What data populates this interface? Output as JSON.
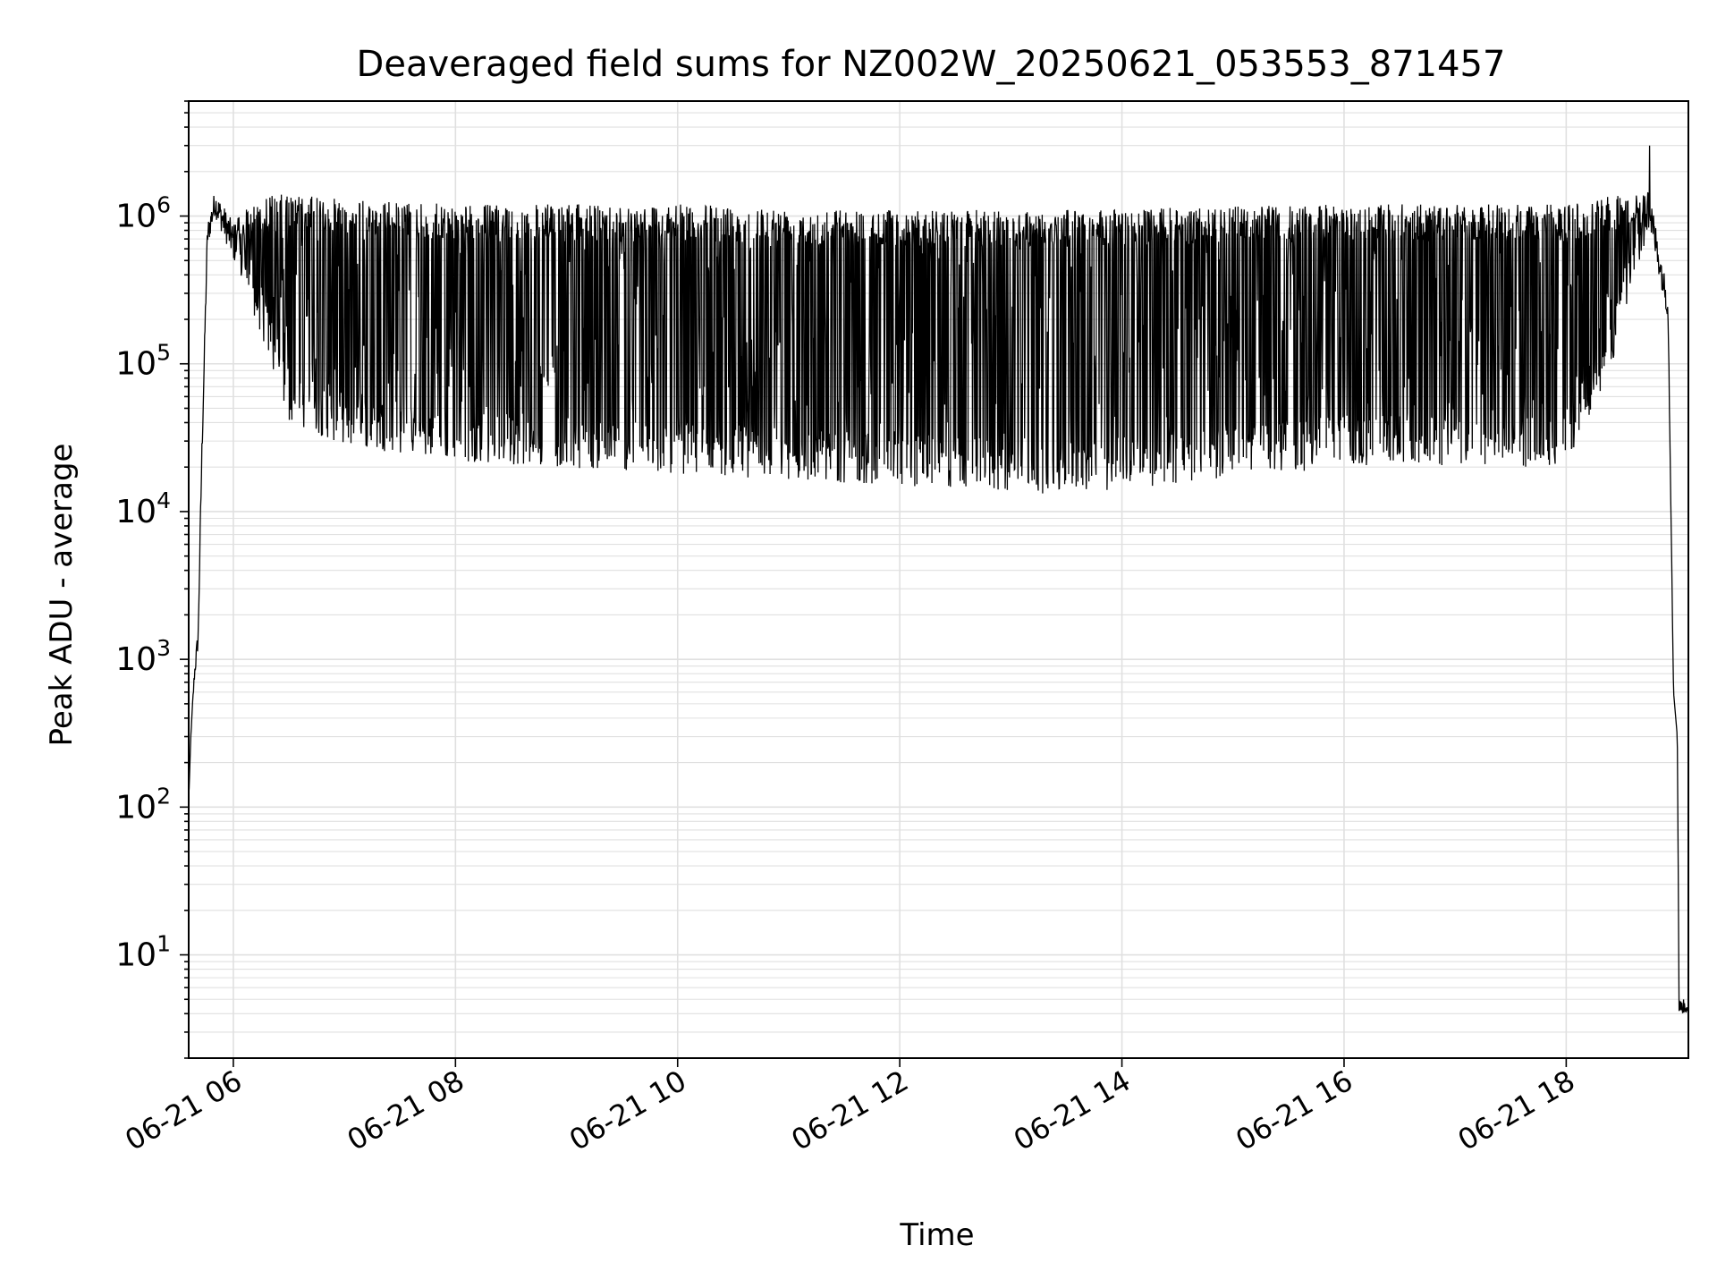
{
  "chart_data": {
    "type": "line",
    "title": "Deaveraged field sums for NZ002W_20250621_053553_871457",
    "xlabel": "Time",
    "ylabel": "Peak ADU - average",
    "yscale": "log",
    "ylim": [
      2,
      6000000
    ],
    "xlim": [
      "2025-06-21T05:35:53",
      "2025-06-21T19:06:00"
    ],
    "grid": true,
    "line_color": "#000000",
    "grid_color": "#e0e0e0",
    "x_ticks": [
      {
        "t": "2025-06-21T06:00:00",
        "label": "06-21 06"
      },
      {
        "t": "2025-06-21T08:00:00",
        "label": "06-21 08"
      },
      {
        "t": "2025-06-21T10:00:00",
        "label": "06-21 10"
      },
      {
        "t": "2025-06-21T12:00:00",
        "label": "06-21 12"
      },
      {
        "t": "2025-06-21T14:00:00",
        "label": "06-21 14"
      },
      {
        "t": "2025-06-21T16:00:00",
        "label": "06-21 16"
      },
      {
        "t": "2025-06-21T18:00:00",
        "label": "06-21 18"
      }
    ],
    "y_ticks": [
      {
        "v": 10,
        "base": "10",
        "exp": "1"
      },
      {
        "v": 100,
        "base": "10",
        "exp": "2"
      },
      {
        "v": 1000,
        "base": "10",
        "exp": "3"
      },
      {
        "v": 10000,
        "base": "10",
        "exp": "4"
      },
      {
        "v": 100000,
        "base": "10",
        "exp": "5"
      },
      {
        "v": 1000000,
        "base": "10",
        "exp": "6"
      }
    ],
    "series": [
      {
        "x_range": [
          "2025-06-21T05:35:53",
          "2025-06-21T19:06:00"
        ],
        "envelope_points": [
          {
            "t": "2025-06-21T05:36:00",
            "floor": 120,
            "peak": 120
          },
          {
            "t": "2025-06-21T05:37:00",
            "floor": 300,
            "peak": 300
          },
          {
            "t": "2025-06-21T05:39:00",
            "floor": 700,
            "peak": 900
          },
          {
            "t": "2025-06-21T05:41:00",
            "floor": 1200,
            "peak": 1700
          },
          {
            "t": "2025-06-21T05:43:00",
            "floor": 20000,
            "peak": 30000
          },
          {
            "t": "2025-06-21T05:46:00",
            "floor": 600000,
            "peak": 900000
          },
          {
            "t": "2025-06-21T05:50:00",
            "floor": 1000000,
            "peak": 1500000
          },
          {
            "t": "2025-06-21T06:00:00",
            "floor": 500000,
            "peak": 900000
          },
          {
            "t": "2025-06-21T06:15:00",
            "floor": 150000,
            "peak": 1400000
          },
          {
            "t": "2025-06-21T06:30:00",
            "floor": 40000,
            "peak": 1400000
          },
          {
            "t": "2025-06-21T07:00:00",
            "floor": 28000,
            "peak": 1300000
          },
          {
            "t": "2025-06-21T08:00:00",
            "floor": 22000,
            "peak": 1200000
          },
          {
            "t": "2025-06-21T10:00:00",
            "floor": 18000,
            "peak": 1200000
          },
          {
            "t": "2025-06-21T12:00:00",
            "floor": 15000,
            "peak": 1100000
          },
          {
            "t": "2025-06-21T13:30:00",
            "floor": 13000,
            "peak": 1100000
          },
          {
            "t": "2025-06-21T16:00:00",
            "floor": 20000,
            "peak": 1200000
          },
          {
            "t": "2025-06-21T18:00:00",
            "floor": 20000,
            "peak": 1200000
          },
          {
            "t": "2025-06-21T18:25:00",
            "floor": 100000,
            "peak": 1400000
          },
          {
            "t": "2025-06-21T18:45:00",
            "floor": 800000,
            "peak": 1500000
          },
          {
            "t": "2025-06-21T18:55:00",
            "floor": 200000,
            "peak": 300000
          },
          {
            "t": "2025-06-21T18:58:00",
            "floor": 600,
            "peak": 600
          },
          {
            "t": "2025-06-21T19:00:00",
            "floor": 300,
            "peak": 300
          },
          {
            "t": "2025-06-21T19:01:00",
            "floor": 4,
            "peak": 5
          },
          {
            "t": "2025-06-21T19:06:00",
            "floor": 4,
            "peak": 5
          }
        ],
        "spike": {
          "t": "2025-06-21T18:45:00",
          "value": 3000000
        }
      }
    ]
  }
}
